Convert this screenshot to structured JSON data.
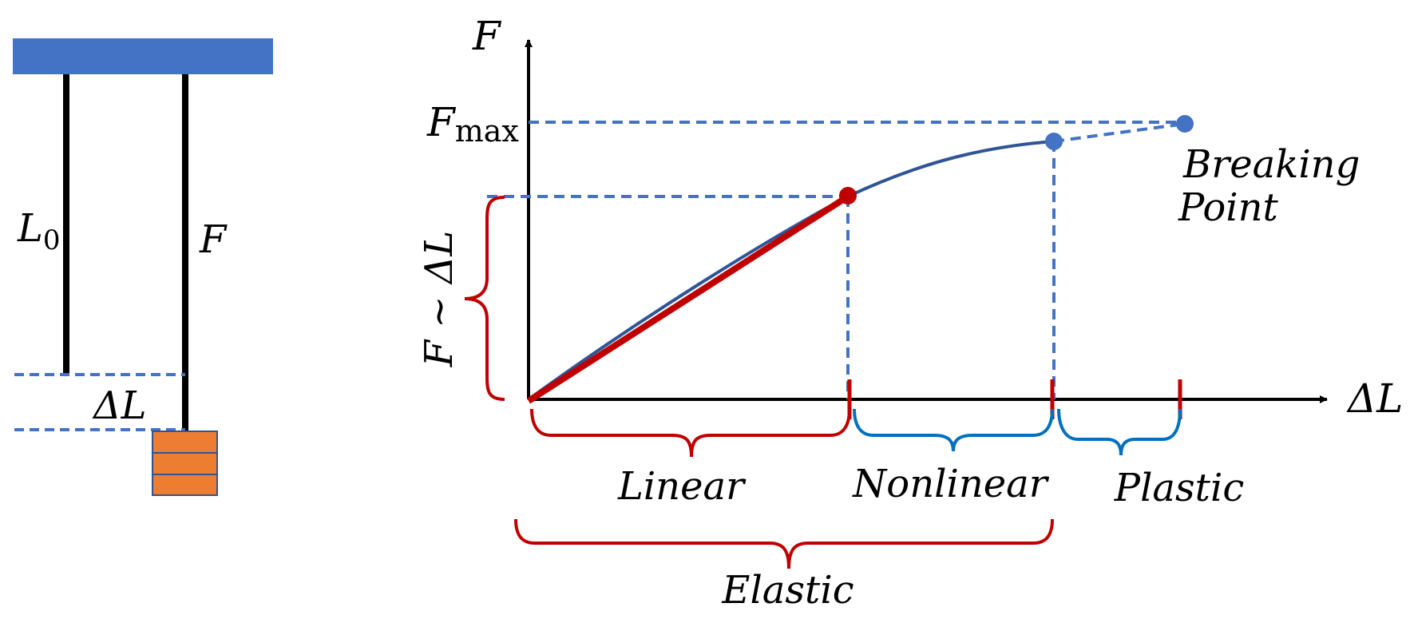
{
  "colors": {
    "support_blue": "#4472C4",
    "weight_orange": "#ED7D31",
    "linear_red": "#C00000",
    "curve_navy": "#2F5597",
    "dash_blue": "#4472C4",
    "brace_blue": "#0070C0",
    "axis_black": "#000000"
  },
  "setup": {
    "original_length_symbol": "L",
    "original_length_subscript": "0",
    "force_symbol": "F",
    "elongation_symbol": "ΔL"
  },
  "graph": {
    "y_axis_label": "F",
    "x_axis_label": "ΔL",
    "fmax_symbol": "F",
    "fmax_subscript": "max",
    "proportionality_label": "F ~ ΔL",
    "breaking_point_line1": "Breaking",
    "breaking_point_line2": "Point",
    "regions": {
      "linear": "Linear",
      "nonlinear": "Nonlinear",
      "plastic": "Plastic",
      "elastic": "Elastic"
    }
  }
}
